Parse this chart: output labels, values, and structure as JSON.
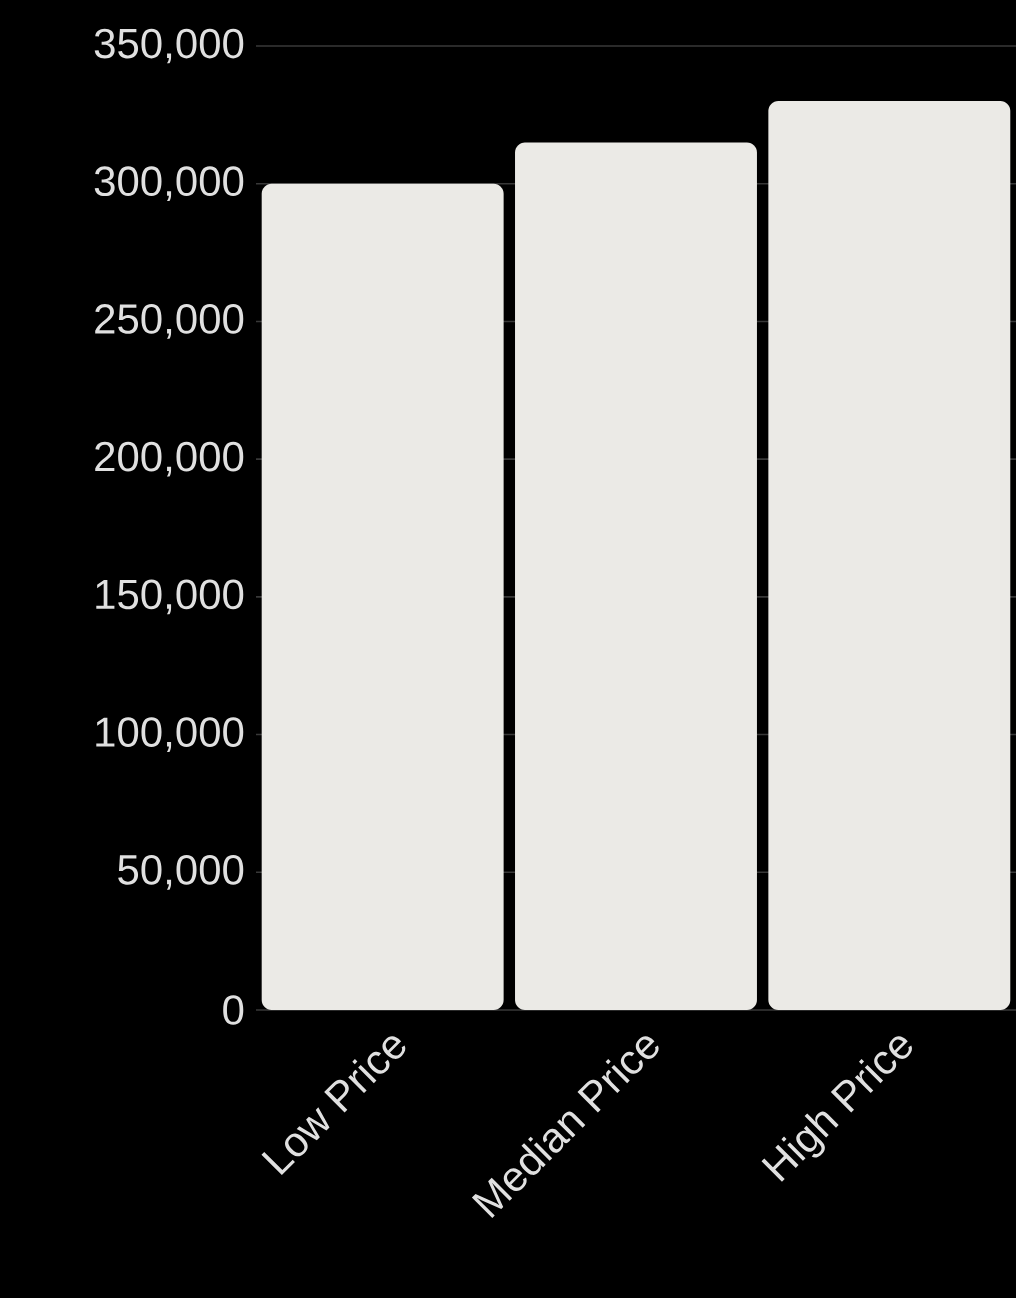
{
  "chart_data": {
    "type": "bar",
    "categories": [
      "Low Price",
      "Median Price",
      "High Price"
    ],
    "values": [
      300000,
      315000,
      330000
    ],
    "color": "#ebeae6",
    "ylim": [
      0,
      350000
    ],
    "yticks": [
      0,
      {
        "value": 50000,
        "label": "50,000"
      },
      {
        "value": 100000,
        "label": "100,000"
      },
      {
        "value": 150000,
        "label": "150,000"
      },
      {
        "value": 200000,
        "label": "200,000"
      },
      {
        "value": 250000,
        "label": "250,000"
      },
      {
        "value": 300000,
        "label": "300,000"
      },
      {
        "value": 350000,
        "label": "350,000"
      }
    ],
    "grid": "y"
  }
}
